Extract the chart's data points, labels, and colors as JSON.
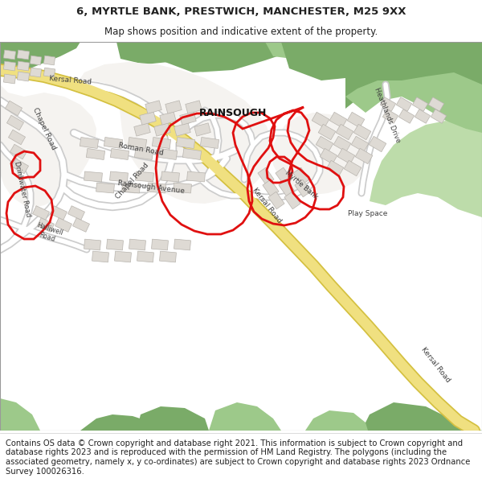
{
  "title_line1": "6, MYRTLE BANK, PRESTWICH, MANCHESTER, M25 9XX",
  "title_line2": "Map shows position and indicative extent of the property.",
  "footer_text": "Contains OS data © Crown copyright and database right 2021. This information is subject to Crown copyright and database rights 2023 and is reproduced with the permission of HM Land Registry. The polygons (including the associated geometry, namely x, y co-ordinates) are subject to Crown copyright and database rights 2023 Ordnance Survey 100026316.",
  "title_fontsize": 9.5,
  "subtitle_fontsize": 8.5,
  "footer_fontsize": 7.2,
  "map_bg": "#f0ece5",
  "green_dark": "#7aab68",
  "green_mid": "#9dc98a",
  "green_light": "#bddcaa",
  "road_yellow": "#f0e080",
  "road_edge": "#d4c040",
  "road_white": "#ffffff",
  "road_gray": "#cccccc",
  "building_fill": "#dedad4",
  "building_edge": "#b8b4ae",
  "red_color": "#e01010",
  "text_dark": "#222222",
  "text_road": "#404040"
}
